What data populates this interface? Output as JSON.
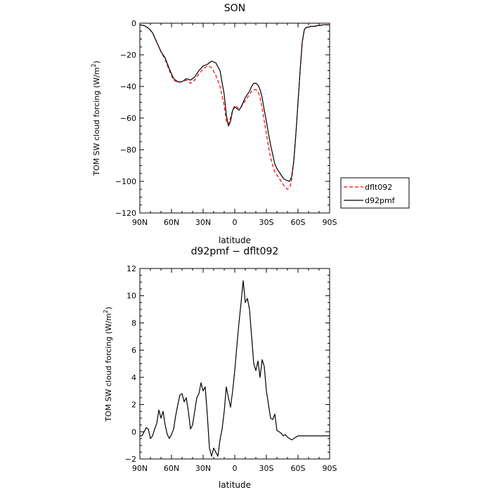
{
  "chart_data": [
    {
      "type": "line",
      "title": "SON",
      "xlabel": "latitude",
      "ylabel_main": "TOM SW cloud forcing (W/m",
      "ylabel_sup": "2",
      "ylabel_close": ")",
      "xlim": [
        90,
        -90
      ],
      "ylim": [
        -120,
        0
      ],
      "xtick_values": [
        90,
        60,
        30,
        0,
        -30,
        -60,
        -90
      ],
      "xtick_labels": [
        "90N",
        "60N",
        "30N",
        "0",
        "30S",
        "60S",
        "90S"
      ],
      "ytick_values": [
        -120,
        -100,
        -80,
        -60,
        -40,
        -20,
        0
      ],
      "ytick_labels": [
        "−120",
        "−100",
        "−80",
        "−60",
        "−40",
        "−20",
        "0"
      ],
      "legend": {
        "placement": "right",
        "entries": [
          "dflt092",
          "d92pmf"
        ]
      },
      "series": [
        {
          "name": "dflt092",
          "color": "#ff0000",
          "dash": true,
          "x": [
            90,
            86,
            82,
            78,
            74,
            70,
            66,
            62,
            58,
            54,
            50,
            46,
            42,
            38,
            34,
            30,
            26,
            22,
            18,
            14,
            10,
            8,
            6,
            4,
            2,
            0,
            -2,
            -4,
            -6,
            -8,
            -10,
            -12,
            -14,
            -16,
            -18,
            -20,
            -22,
            -24,
            -26,
            -28,
            -30,
            -32,
            -34,
            -36,
            -38,
            -40,
            -42,
            -44,
            -46,
            -48,
            -50,
            -52,
            -54,
            -56,
            -58,
            -60,
            -62,
            -64,
            -66,
            -68,
            -70,
            -72,
            -74,
            -76,
            -78,
            -80,
            -84,
            -88,
            -90
          ],
          "y": [
            -1,
            -1.5,
            -3,
            -6,
            -12,
            -18,
            -23,
            -30,
            -36,
            -37.5,
            -37,
            -36,
            -38,
            -36,
            -32,
            -29,
            -27,
            -28,
            -33,
            -40,
            -52,
            -62,
            -64,
            -60,
            -55,
            -52,
            -53,
            -54,
            -53,
            -51,
            -49,
            -47,
            -45,
            -43,
            -42,
            -42,
            -43,
            -47,
            -54,
            -62,
            -70,
            -78,
            -85,
            -90,
            -94,
            -96,
            -98,
            -100,
            -102,
            -104,
            -105,
            -104,
            -99,
            -87,
            -70,
            -50,
            -30,
            -12,
            -4,
            -2.5,
            -2.5,
            -2,
            -2,
            -2,
            -1.5,
            -1.5,
            -1,
            -1,
            -1
          ]
        },
        {
          "name": "d92pmf",
          "color": "#000000",
          "dash": false,
          "x": [
            90,
            86,
            82,
            78,
            74,
            70,
            66,
            62,
            58,
            54,
            50,
            46,
            42,
            38,
            34,
            30,
            26,
            22,
            18,
            14,
            10,
            8,
            6,
            4,
            2,
            0,
            -2,
            -4,
            -6,
            -8,
            -10,
            -12,
            -14,
            -16,
            -18,
            -20,
            -22,
            -24,
            -26,
            -28,
            -30,
            -32,
            -34,
            -36,
            -38,
            -40,
            -42,
            -44,
            -46,
            -48,
            -50,
            -52,
            -54,
            -56,
            -58,
            -60,
            -62,
            -64,
            -66,
            -68,
            -70,
            -72,
            -74,
            -76,
            -78,
            -80,
            -84,
            -88,
            -90
          ],
          "y": [
            -1,
            -1.5,
            -3,
            -6,
            -12,
            -18,
            -22,
            -29,
            -35,
            -37,
            -37,
            -35,
            -36,
            -34,
            -30,
            -27,
            -26,
            -24,
            -25,
            -30,
            -45,
            -58,
            -65,
            -62,
            -55,
            -53,
            -54,
            -55,
            -53,
            -50,
            -47,
            -45,
            -43,
            -40,
            -38,
            -38,
            -39,
            -42,
            -47,
            -55,
            -62,
            -70,
            -77,
            -83,
            -89,
            -92,
            -94,
            -96,
            -98,
            -99,
            -99.5,
            -100,
            -97,
            -87,
            -70,
            -50,
            -30,
            -12,
            -4,
            -2.5,
            -2.5,
            -2,
            -2,
            -2,
            -1.5,
            -1.5,
            -1,
            -1,
            -1
          ]
        }
      ]
    },
    {
      "type": "line",
      "title": "d92pmf − dflt092",
      "xlabel": "latitude",
      "ylabel_main": "TOM SW cloud forcing (W/m",
      "ylabel_sup": "2",
      "ylabel_close": ")",
      "xlim": [
        90,
        -90
      ],
      "ylim": [
        -2,
        12
      ],
      "xtick_values": [
        90,
        60,
        30,
        0,
        -30,
        -60,
        -90
      ],
      "xtick_labels": [
        "90N",
        "60N",
        "30N",
        "0",
        "30S",
        "60S",
        "90S"
      ],
      "ytick_values": [
        -2,
        0,
        2,
        4,
        6,
        8,
        10,
        12
      ],
      "ytick_labels": [
        "−2",
        "0",
        "2",
        "4",
        "6",
        "8",
        "10",
        "12"
      ],
      "series": [
        {
          "color": "#000000",
          "dash": false,
          "x": [
            90,
            88,
            86,
            84,
            82,
            80,
            78,
            76,
            74,
            72,
            70,
            68,
            66,
            64,
            62,
            60,
            58,
            56,
            54,
            52,
            50,
            48,
            46,
            44,
            42,
            40,
            38,
            36,
            34,
            32,
            30,
            28,
            26,
            24,
            22,
            20,
            18,
            16,
            14,
            12,
            10,
            8,
            6,
            4,
            2,
            0,
            -2,
            -4,
            -6,
            -8,
            -10,
            -12,
            -14,
            -16,
            -18,
            -20,
            -22,
            -24,
            -26,
            -28,
            -30,
            -32,
            -34,
            -36,
            -38,
            -40,
            -42,
            -44,
            -46,
            -48,
            -50,
            -52,
            -54,
            -56,
            -58,
            -60,
            -62,
            -64,
            -66,
            -68,
            -70,
            -72,
            -74,
            -76,
            -78,
            -80,
            -82,
            -84,
            -86,
            -88,
            -90
          ],
          "y": [
            -0.3,
            -0.3,
            0,
            0.3,
            0.2,
            -0.5,
            -0.3,
            0.2,
            0.6,
            1.6,
            1.0,
            1.5,
            0.5,
            -0.2,
            -0.5,
            -0.2,
            0.2,
            1.2,
            2.0,
            2.7,
            2.8,
            2.2,
            2.5,
            1.5,
            0.2,
            0.5,
            1.5,
            2.5,
            2.8,
            3.6,
            3.0,
            3.3,
            1.2,
            -1.2,
            -1.8,
            -1.2,
            -1.5,
            -1.8,
            -0.6,
            0.2,
            1.5,
            3.3,
            2.5,
            1.8,
            3.0,
            4.5,
            6.3,
            8.0,
            9.5,
            11.1,
            9.5,
            9.8,
            9.0,
            7.0,
            5.0,
            4.5,
            5.2,
            4.0,
            5.3,
            4.8,
            3.0,
            2.0,
            1.0,
            0.9,
            1.3,
            0.1,
            0.0,
            -0.1,
            -0.3,
            -0.2,
            -0.4,
            -0.5,
            -0.6,
            -0.5,
            -0.4,
            -0.3,
            -0.3,
            -0.3,
            -0.3,
            -0.3,
            -0.3,
            -0.3,
            -0.3,
            -0.3,
            -0.3,
            -0.3,
            -0.3,
            -0.3,
            -0.3,
            -0.3,
            -0.3
          ]
        }
      ]
    }
  ]
}
